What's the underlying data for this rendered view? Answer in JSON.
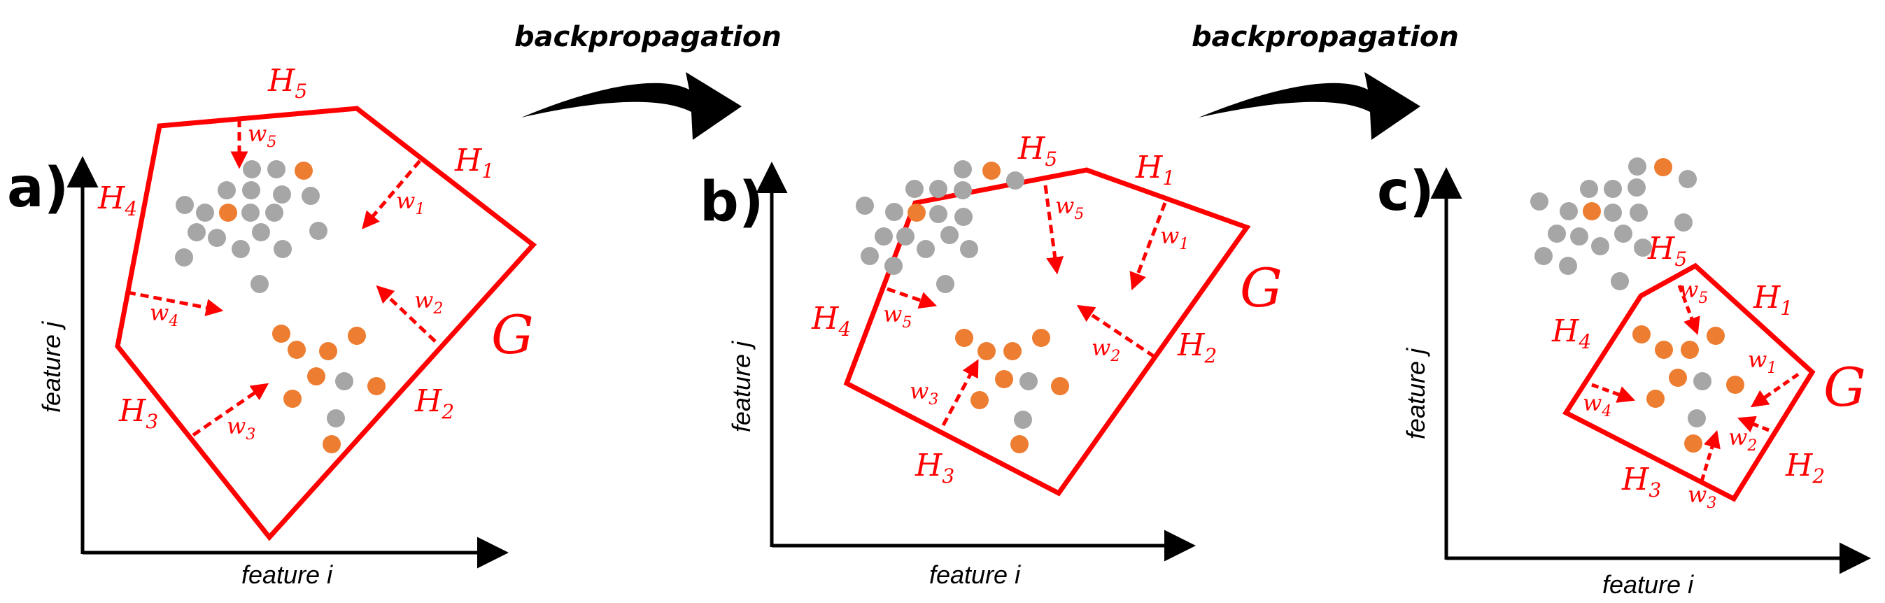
{
  "figure": {
    "arrow_label": "backpropagation",
    "x_axis_label": "feature i",
    "y_axis_label": "feature j",
    "region_label": "G",
    "hyperplane_letter": "H",
    "weight_letter": "w",
    "colors": {
      "boundary": "#ff0000",
      "in_class_point": "#ed7d31",
      "other_point": "#a6a6a6",
      "axis": "#000000"
    }
  },
  "panels": [
    {
      "letter": "a)",
      "hyperplanes": [
        "1",
        "2",
        "3",
        "4",
        "5"
      ],
      "weights": [
        "1",
        "2",
        "3",
        "4",
        "5"
      ]
    },
    {
      "letter": "b)",
      "hyperplanes": [
        "1",
        "2",
        "3",
        "4",
        "5"
      ],
      "weights": [
        "1",
        "2",
        "3",
        "5",
        "5"
      ]
    },
    {
      "letter": "c)",
      "hyperplanes": [
        "1",
        "2",
        "3",
        "4",
        "5"
      ],
      "weights": [
        "1",
        "2",
        "3",
        "4",
        "5"
      ]
    }
  ]
}
